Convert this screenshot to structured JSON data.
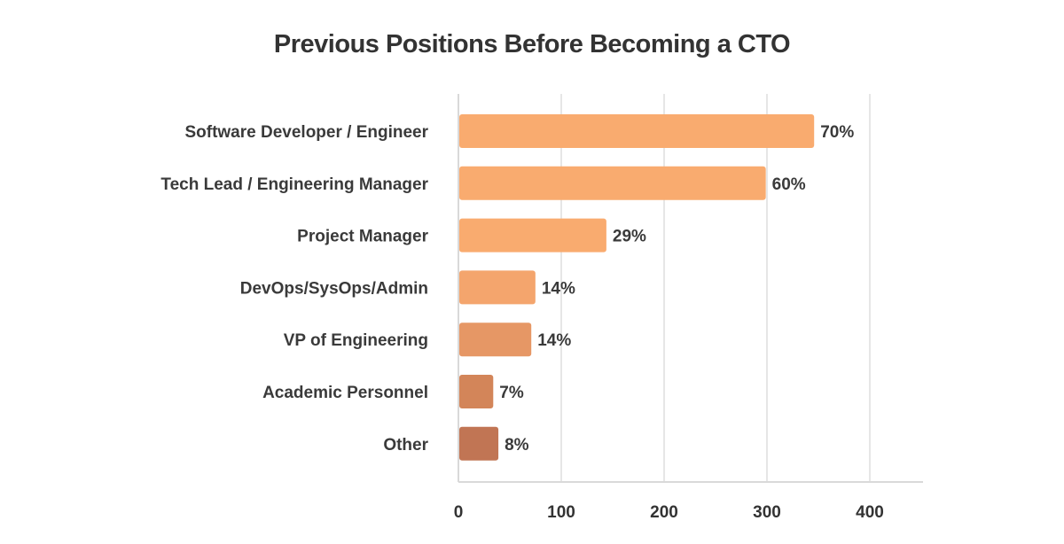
{
  "chart_data": {
    "type": "bar",
    "orientation": "horizontal",
    "title": "Previous Positions Before Becoming a CTO",
    "categories": [
      "Software Developer / Engineer",
      "Tech Lead / Engineering Manager",
      "Project Manager",
      "DevOps/SysOps/Admin",
      "VP of Engineering",
      "Academic Personnel",
      "Other"
    ],
    "values": [
      345,
      298,
      143,
      74,
      70,
      33,
      38
    ],
    "data_labels": [
      "70%",
      "60%",
      "29%",
      "14%",
      "14%",
      "7%",
      "8%"
    ],
    "bar_colors": [
      "#f9ab6f",
      "#f9ab6f",
      "#f9ab6f",
      "#f4a56d",
      "#e69765",
      "#d38559",
      "#c17554"
    ],
    "xlim": [
      0,
      450
    ],
    "xticks": [
      0,
      100,
      200,
      300,
      400
    ],
    "grid": "vertical",
    "legend": "none"
  }
}
